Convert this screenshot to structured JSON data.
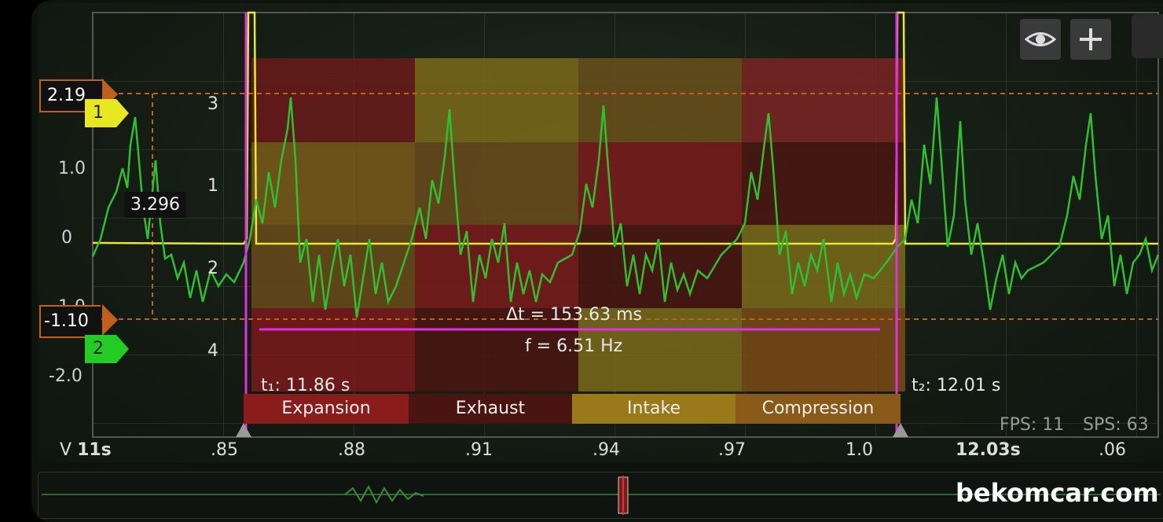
{
  "y_axis_labels": [
    "1.0",
    "0",
    "-1.0",
    "-2.0"
  ],
  "cylinder_rows": [
    "3",
    "1",
    "2",
    "4"
  ],
  "markers": {
    "upper_value": "2.19",
    "lower_value": "-1.10",
    "channel1": "1",
    "channel2": "2"
  },
  "cursor_value": "3.296",
  "measurement": {
    "delta_t": "Δt = 153.63 ms",
    "frequency": "f = 6.51 Hz",
    "t1": "t₁: 11.86 s",
    "t2": "t₂: 12.01 s"
  },
  "strokes": [
    "Expansion",
    "Exhaust",
    "Intake",
    "Compression"
  ],
  "x_axis": {
    "prefix": "V",
    "start": "11s",
    "ticks": [
      ".85",
      ".88",
      ".91",
      ".94",
      ".97",
      "1.0"
    ],
    "major": "12.03s",
    "end": ".06"
  },
  "stats": {
    "fps": "FPS: 11",
    "sps": "SPS: 63"
  },
  "watermark": "bekomcar.com",
  "icons": {
    "eye": "eye-icon",
    "add": "plus-icon"
  },
  "colors": {
    "channel1": "#e8e830",
    "channel2": "#2fbf2f",
    "cursor": "#e030e0",
    "marker": "#c0601a"
  }
}
